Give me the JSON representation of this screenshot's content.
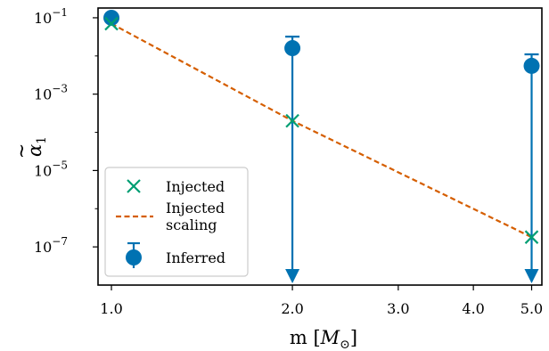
{
  "chart_data": {
    "type": "scatter",
    "xscale": "log",
    "yscale": "log",
    "xlim": [
      0.95,
      5.2
    ],
    "ylim": [
      1e-08,
      0.18
    ],
    "xticks": [
      1.0,
      2.0,
      3.0,
      4.0,
      5.0
    ],
    "xtick_labels": [
      "1.0",
      "2.0",
      "3.0",
      "4.0",
      "5.0"
    ],
    "yticks": [
      0.1,
      0.001,
      1e-05,
      1e-07
    ],
    "ytick_labels": {
      "base": [
        "10",
        "10",
        "10",
        "10"
      ],
      "exp": [
        "−1",
        "−3",
        "−5",
        "−7"
      ]
    },
    "xlabel": {
      "main": "m [",
      "symbol": "M",
      "sub": "⊙",
      "close": "]"
    },
    "ylabel": {
      "main": "α",
      "accent": "~",
      "sub": "1"
    },
    "legend_position": "lower-left",
    "series": [
      {
        "name": "Injected",
        "kind": "marker-x",
        "color": "#009e73",
        "points": [
          [
            1.0,
            0.07
          ],
          [
            2.0,
            0.0002
          ],
          [
            5.0,
            1.8e-07
          ]
        ]
      },
      {
        "name": "Injected scaling",
        "name_lines": [
          "Injected",
          "scaling"
        ],
        "kind": "dashed-line",
        "color": "#d55e00",
        "points": [
          [
            1.0,
            0.07
          ],
          [
            2.0,
            0.0002
          ],
          [
            5.0,
            1.8e-07
          ]
        ]
      },
      {
        "name": "Inferred",
        "kind": "errorbar",
        "color": "#0072b2",
        "points": [
          {
            "x": 1.0,
            "y": 0.1,
            "upper": null,
            "upper_limit_arrow": false
          },
          {
            "x": 2.0,
            "y": 0.016,
            "upper": 0.032,
            "upper_limit_arrow": true
          },
          {
            "x": 5.0,
            "y": 0.0055,
            "upper": 0.011,
            "upper_limit_arrow": true
          }
        ]
      }
    ]
  }
}
